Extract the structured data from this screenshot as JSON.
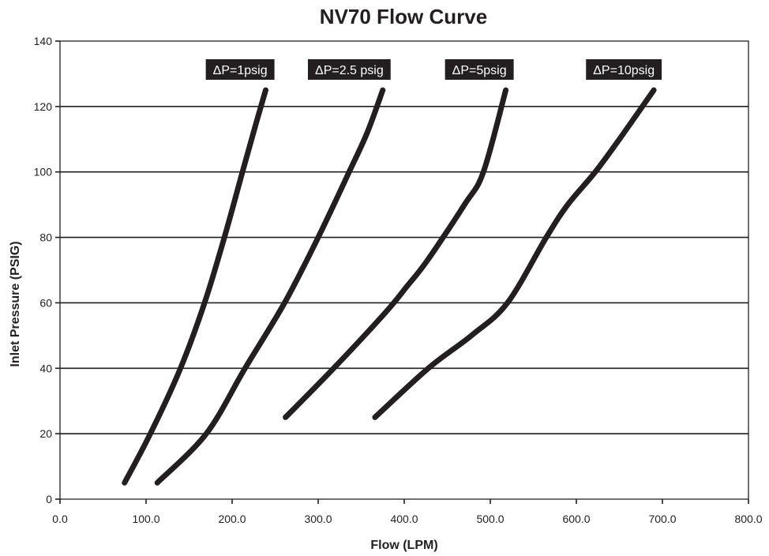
{
  "chart_data": {
    "type": "line",
    "title": "NV70 Flow Curve",
    "xlabel": "Flow (LPM)",
    "ylabel": "Inlet Pressure (PSIG)",
    "xlim": [
      0,
      800
    ],
    "ylim": [
      0,
      140
    ],
    "x_ticks": [
      "0.0",
      "100.0",
      "200.0",
      "300.0",
      "400.0",
      "500.0",
      "600.0",
      "700.0",
      "800.0"
    ],
    "y_ticks": [
      "0",
      "20",
      "40",
      "60",
      "80",
      "100",
      "120",
      "140"
    ],
    "grid": "horizontal",
    "legend": "inline-labels",
    "colors": {
      "line": "#231f20",
      "label_bg": "#231f20",
      "label_text": "#ffffff",
      "grid": "#231f20"
    },
    "series": [
      {
        "name": "ΔP=1psig",
        "label_x": 240,
        "points": [
          [
            75,
            5
          ],
          [
            105,
            20
          ],
          [
            140,
            40
          ],
          [
            168,
            60
          ],
          [
            191,
            80
          ],
          [
            212,
            100
          ],
          [
            228,
            115
          ],
          [
            239,
            125
          ]
        ]
      },
      {
        "name": "ΔP=2.5 psig",
        "label_x": 375,
        "points": [
          [
            113,
            5
          ],
          [
            170,
            20
          ],
          [
            215,
            40
          ],
          [
            261,
            60
          ],
          [
            300,
            80
          ],
          [
            336,
            100
          ],
          [
            357,
            112
          ],
          [
            375,
            125
          ]
        ]
      },
      {
        "name": "ΔP=5psig",
        "label_x": 518,
        "points": [
          [
            262,
            25
          ],
          [
            318,
            40
          ],
          [
            378,
            57
          ],
          [
            403,
            65
          ],
          [
            427,
            73
          ],
          [
            470,
            90
          ],
          [
            492,
            100
          ],
          [
            518,
            125
          ]
        ]
      },
      {
        "name": "ΔP=10psig",
        "label_x": 690,
        "points": [
          [
            366,
            25
          ],
          [
            428,
            40
          ],
          [
            478,
            50
          ],
          [
            520,
            60
          ],
          [
            565,
            80
          ],
          [
            590,
            90
          ],
          [
            622,
            100
          ],
          [
            650,
            110
          ],
          [
            690,
            125
          ]
        ]
      }
    ]
  }
}
